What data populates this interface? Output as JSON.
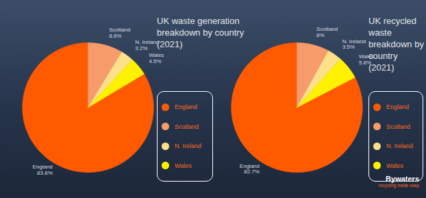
{
  "chart_data": [
    {
      "type": "pie",
      "title": "UK waste generation breakdown by country (2021)",
      "categories": [
        "England",
        "Scotland",
        "N. Ireland",
        "Wales"
      ],
      "values": [
        83.6,
        8.6,
        3.2,
        4.5
      ],
      "value_labels": [
        "83.6%",
        "8.6%",
        "3.2%",
        "4.5%"
      ],
      "colors": [
        "#ff5a00",
        "#f79b6b",
        "#fde08a",
        "#fff200"
      ],
      "data_labels": true,
      "legend": "right"
    },
    {
      "type": "pie",
      "title": "UK recycled waste breakdown by country (2021)",
      "categories": [
        "England",
        "Scotland",
        "N. Ireland",
        "Wales"
      ],
      "values": [
        82.7,
        8,
        3.5,
        5.8
      ],
      "value_labels": [
        "82.7%",
        "8%",
        "3.5%",
        "5.8%"
      ],
      "colors": [
        "#ff5a00",
        "#f79b6b",
        "#fde08a",
        "#fff200"
      ],
      "data_labels": true,
      "legend": "right"
    }
  ],
  "logo": {
    "name": "Bywaters",
    "tagline": "recycling made easy"
  }
}
